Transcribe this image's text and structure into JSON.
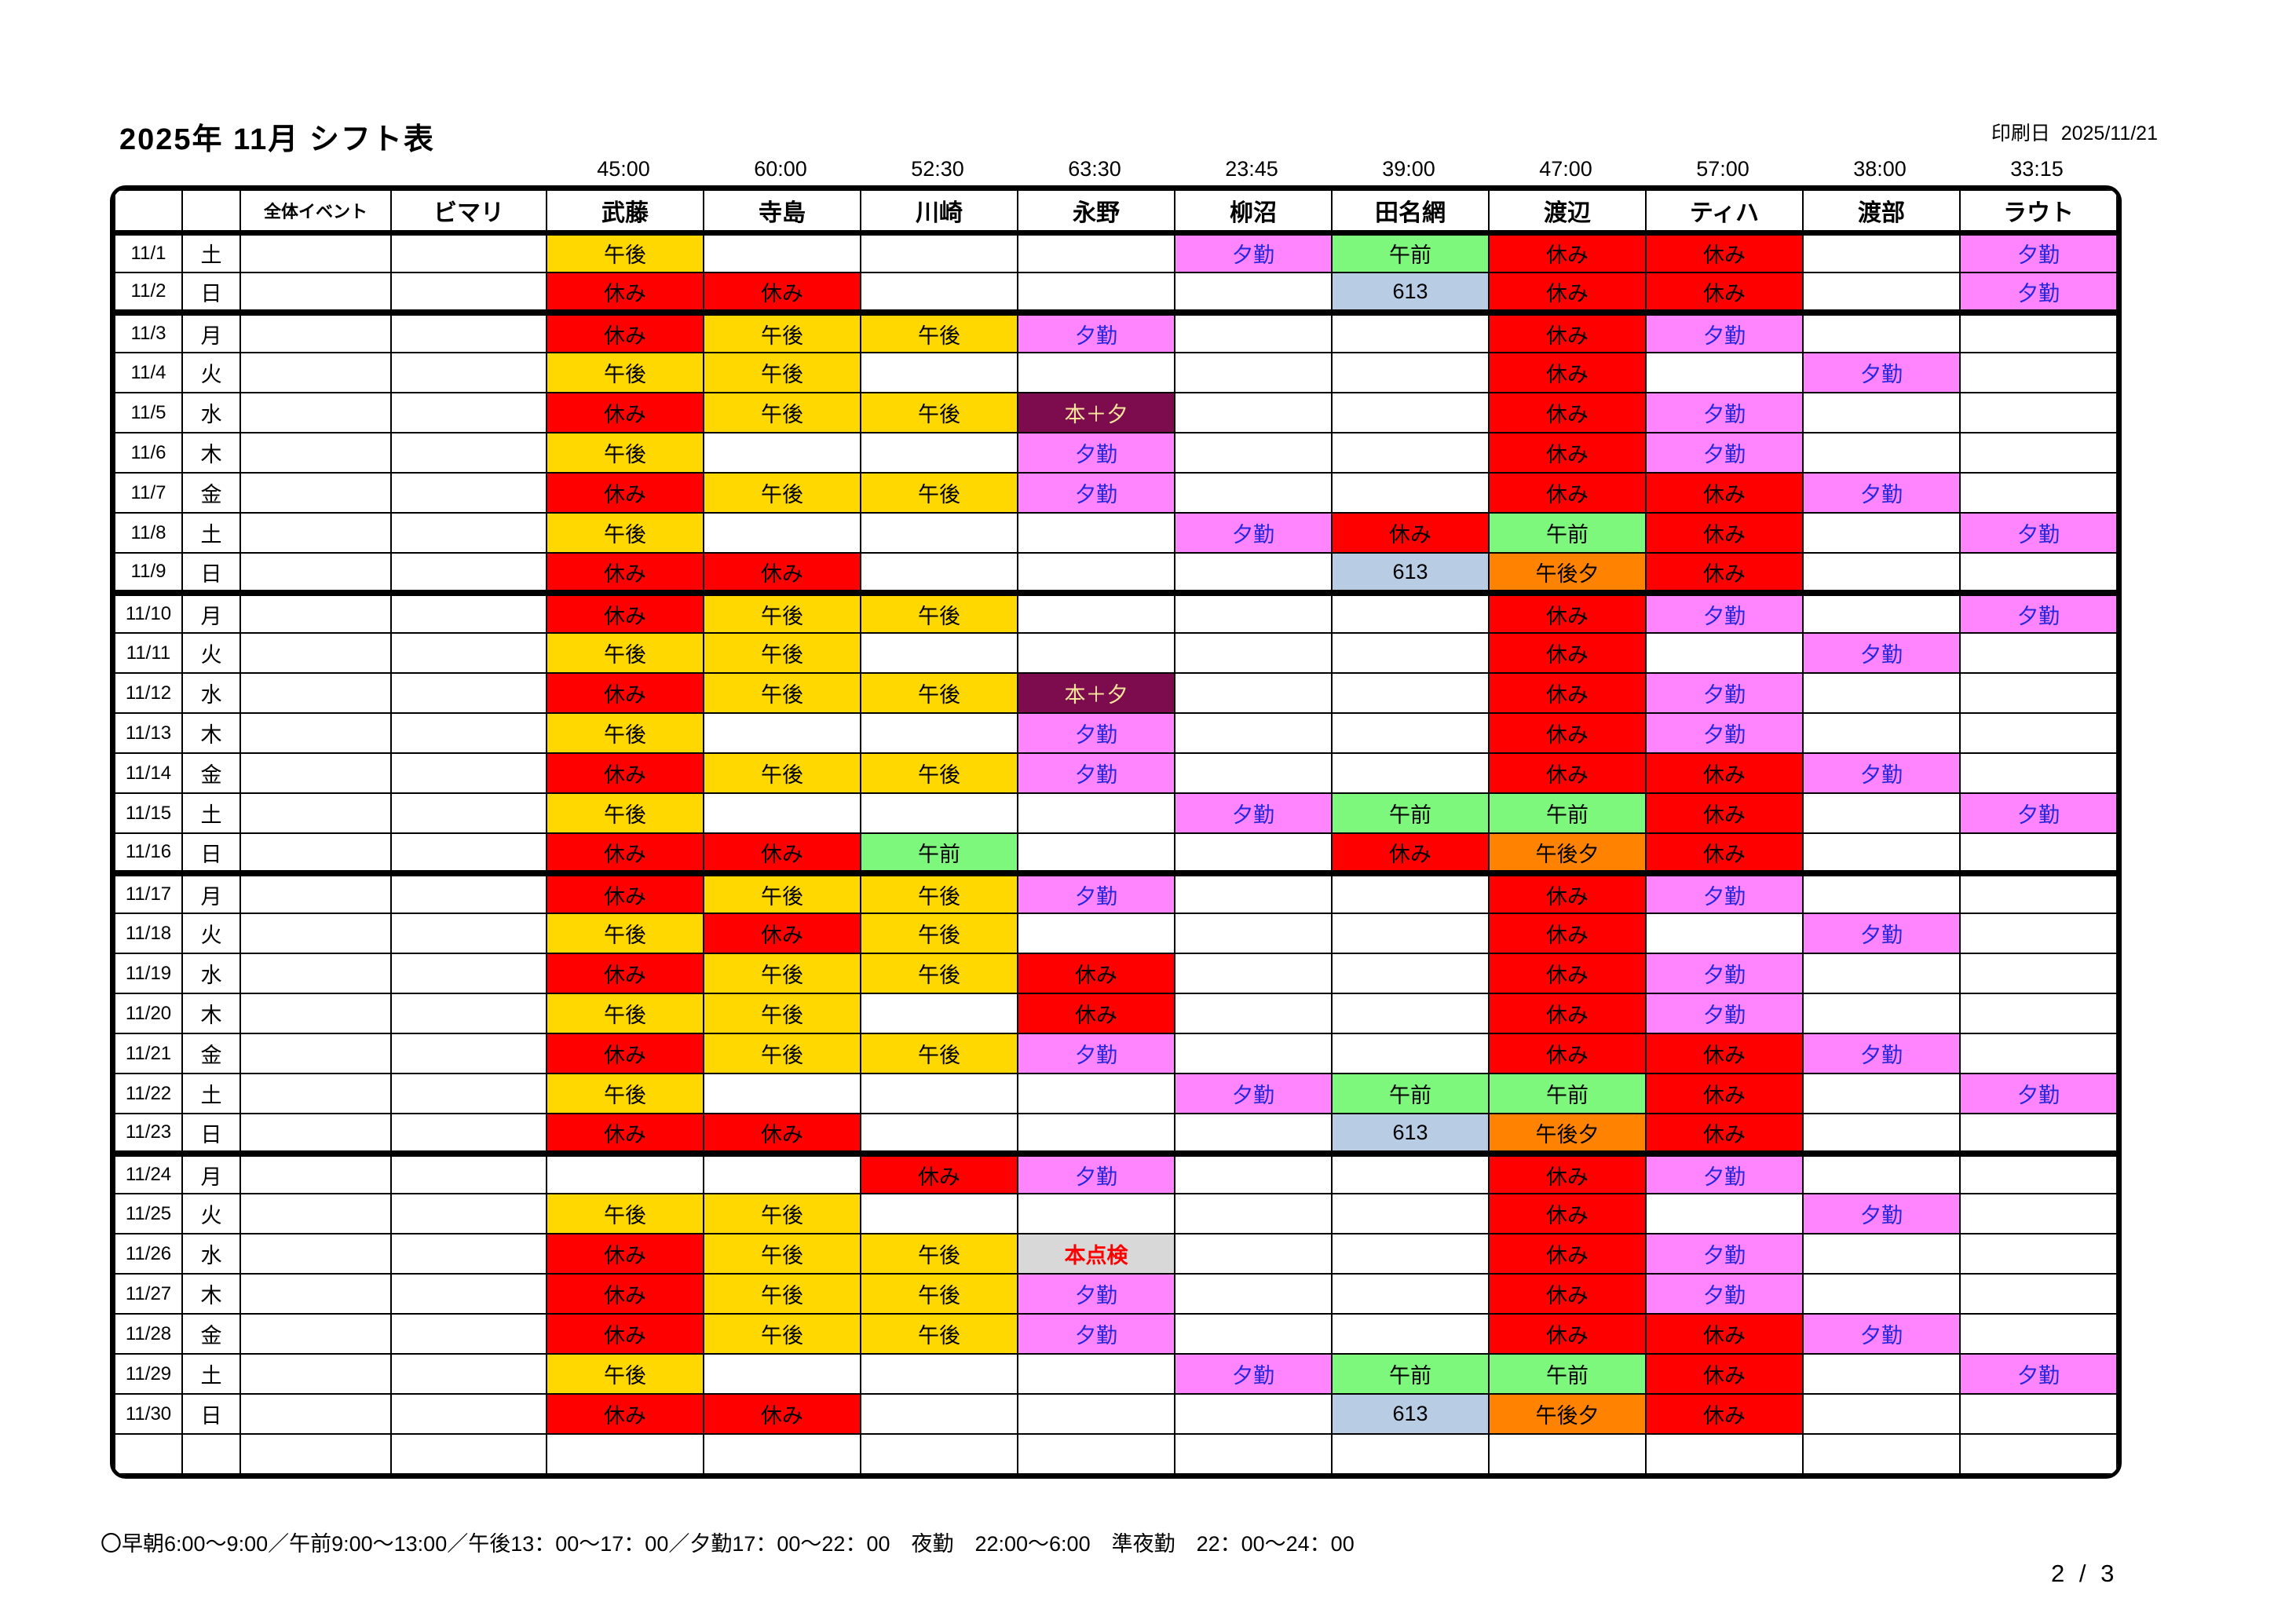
{
  "page": {
    "title": "2025年 11月 シフト表",
    "print_label": "印刷日  2025/11/21",
    "footer_legend": "〇早朝6:00～9:00／午前9:00～13:00／午後13：00～17：00／夕勤17：00～22：00　夜勤　22:00～6:00　準夜勤　22：00～24：00",
    "page_indicator": "2 / 3"
  },
  "table": {
    "columns": [
      {
        "name": "全体イベント",
        "hours": "",
        "small": true
      },
      {
        "name": "ビマリ",
        "hours": ""
      },
      {
        "name": "武藤",
        "hours": "45:00"
      },
      {
        "name": "寺島",
        "hours": "60:00"
      },
      {
        "name": "川崎",
        "hours": "52:30"
      },
      {
        "name": "永野",
        "hours": "63:30"
      },
      {
        "name": "柳沼",
        "hours": "23:45"
      },
      {
        "name": "田名網",
        "hours": "39:00"
      },
      {
        "name": "渡辺",
        "hours": "47:00"
      },
      {
        "name": "ティハ",
        "hours": "57:00"
      },
      {
        "name": "渡部",
        "hours": "38:00"
      },
      {
        "name": "ラウト",
        "hours": "33:15"
      }
    ],
    "shift_types": {
      "afternoon": {
        "label": "午後",
        "bg": "#FFD800",
        "fg": "#000000"
      },
      "off": {
        "label": "休み",
        "bg": "#FF0000",
        "fg": "#000000"
      },
      "evening": {
        "label": "夕勤",
        "bg": "#FF85FF",
        "fg": "#2626DD"
      },
      "morning": {
        "label": "午前",
        "bg": "#7DF87D",
        "fg": "#000000"
      },
      "c613": {
        "label": "613",
        "bg": "#B8CCE4",
        "fg": "#000000"
      },
      "pm_eve": {
        "label": "午後夕",
        "bg": "#FF8200",
        "fg": "#000000"
      },
      "hon_yu": {
        "label": "本＋夕",
        "bg": "#7C0C4E",
        "fg": "#FFE79C"
      },
      "inspection": {
        "label": "本点検",
        "bg": "#D8D8D8",
        "fg": "#FF0000"
      }
    },
    "rows": [
      {
        "date": "11/1",
        "day": "土",
        "sep": false,
        "cells": [
          "",
          "",
          "afternoon",
          "",
          "",
          "",
          "evening",
          "morning",
          "off",
          "off",
          "",
          "evening"
        ]
      },
      {
        "date": "11/2",
        "day": "日",
        "sep": true,
        "cells": [
          "",
          "",
          "off",
          "off",
          "",
          "",
          "",
          "c613",
          "off",
          "off",
          "",
          "evening"
        ]
      },
      {
        "date": "11/3",
        "day": "月",
        "sep": false,
        "cells": [
          "",
          "",
          "off",
          "afternoon",
          "afternoon",
          "evening",
          "",
          "",
          "off",
          "evening",
          "",
          ""
        ]
      },
      {
        "date": "11/4",
        "day": "火",
        "sep": false,
        "cells": [
          "",
          "",
          "afternoon",
          "afternoon",
          "",
          "",
          "",
          "",
          "off",
          "",
          "evening",
          ""
        ]
      },
      {
        "date": "11/5",
        "day": "水",
        "sep": false,
        "cells": [
          "",
          "",
          "off",
          "afternoon",
          "afternoon",
          "hon_yu",
          "",
          "",
          "off",
          "evening",
          "",
          ""
        ]
      },
      {
        "date": "11/6",
        "day": "木",
        "sep": false,
        "cells": [
          "",
          "",
          "afternoon",
          "",
          "",
          "evening",
          "",
          "",
          "off",
          "evening",
          "",
          ""
        ]
      },
      {
        "date": "11/7",
        "day": "金",
        "sep": false,
        "cells": [
          "",
          "",
          "off",
          "afternoon",
          "afternoon",
          "evening",
          "",
          "",
          "off",
          "off",
          "evening",
          ""
        ]
      },
      {
        "date": "11/8",
        "day": "土",
        "sep": false,
        "cells": [
          "",
          "",
          "afternoon",
          "",
          "",
          "",
          "evening",
          "off",
          "morning",
          "off",
          "",
          "evening"
        ]
      },
      {
        "date": "11/9",
        "day": "日",
        "sep": true,
        "cells": [
          "",
          "",
          "off",
          "off",
          "",
          "",
          "",
          "c613",
          "pm_eve",
          "off",
          "",
          ""
        ]
      },
      {
        "date": "11/10",
        "day": "月",
        "sep": false,
        "cells": [
          "",
          "",
          "off",
          "afternoon",
          "afternoon",
          "",
          "",
          "",
          "off",
          "evening",
          "",
          "evening"
        ]
      },
      {
        "date": "11/11",
        "day": "火",
        "sep": false,
        "cells": [
          "",
          "",
          "afternoon",
          "afternoon",
          "",
          "",
          "",
          "",
          "off",
          "",
          "evening",
          ""
        ]
      },
      {
        "date": "11/12",
        "day": "水",
        "sep": false,
        "cells": [
          "",
          "",
          "off",
          "afternoon",
          "afternoon",
          "hon_yu",
          "",
          "",
          "off",
          "evening",
          "",
          ""
        ]
      },
      {
        "date": "11/13",
        "day": "木",
        "sep": false,
        "cells": [
          "",
          "",
          "afternoon",
          "",
          "",
          "evening",
          "",
          "",
          "off",
          "evening",
          "",
          ""
        ]
      },
      {
        "date": "11/14",
        "day": "金",
        "sep": false,
        "cells": [
          "",
          "",
          "off",
          "afternoon",
          "afternoon",
          "evening",
          "",
          "",
          "off",
          "off",
          "evening",
          ""
        ]
      },
      {
        "date": "11/15",
        "day": "土",
        "sep": false,
        "cells": [
          "",
          "",
          "afternoon",
          "",
          "",
          "",
          "evening",
          "morning",
          "morning",
          "off",
          "",
          "evening"
        ]
      },
      {
        "date": "11/16",
        "day": "日",
        "sep": true,
        "cells": [
          "",
          "",
          "off",
          "off",
          "morning",
          "",
          "",
          "off",
          "pm_eve",
          "off",
          "",
          ""
        ]
      },
      {
        "date": "11/17",
        "day": "月",
        "sep": false,
        "cells": [
          "",
          "",
          "off",
          "afternoon",
          "afternoon",
          "evening",
          "",
          "",
          "off",
          "evening",
          "",
          ""
        ]
      },
      {
        "date": "11/18",
        "day": "火",
        "sep": false,
        "cells": [
          "",
          "",
          "afternoon",
          "off",
          "afternoon",
          "",
          "",
          "",
          "off",
          "",
          "evening",
          ""
        ]
      },
      {
        "date": "11/19",
        "day": "水",
        "sep": false,
        "cells": [
          "",
          "",
          "off",
          "afternoon",
          "afternoon",
          "off",
          "",
          "",
          "off",
          "evening",
          "",
          ""
        ]
      },
      {
        "date": "11/20",
        "day": "木",
        "sep": false,
        "cells": [
          "",
          "",
          "afternoon",
          "afternoon",
          "",
          "off",
          "",
          "",
          "off",
          "evening",
          "",
          ""
        ]
      },
      {
        "date": "11/21",
        "day": "金",
        "sep": false,
        "cells": [
          "",
          "",
          "off",
          "afternoon",
          "afternoon",
          "evening",
          "",
          "",
          "off",
          "off",
          "evening",
          ""
        ]
      },
      {
        "date": "11/22",
        "day": "土",
        "sep": false,
        "cells": [
          "",
          "",
          "afternoon",
          "",
          "",
          "",
          "evening",
          "morning",
          "morning",
          "off",
          "",
          "evening"
        ]
      },
      {
        "date": "11/23",
        "day": "日",
        "sep": true,
        "cells": [
          "",
          "",
          "off",
          "off",
          "",
          "",
          "",
          "c613",
          "pm_eve",
          "off",
          "",
          ""
        ]
      },
      {
        "date": "11/24",
        "day": "月",
        "sep": false,
        "cells": [
          "",
          "",
          "",
          "",
          "off",
          "evening",
          "",
          "",
          "off",
          "evening",
          "",
          ""
        ]
      },
      {
        "date": "11/25",
        "day": "火",
        "sep": false,
        "cells": [
          "",
          "",
          "afternoon",
          "afternoon",
          "",
          "",
          "",
          "",
          "off",
          "",
          "evening",
          ""
        ]
      },
      {
        "date": "11/26",
        "day": "水",
        "sep": false,
        "cells": [
          "",
          "",
          "off",
          "afternoon",
          "afternoon",
          "inspection",
          "",
          "",
          "off",
          "evening",
          "",
          ""
        ]
      },
      {
        "date": "11/27",
        "day": "木",
        "sep": false,
        "cells": [
          "",
          "",
          "off",
          "afternoon",
          "afternoon",
          "evening",
          "",
          "",
          "off",
          "evening",
          "",
          ""
        ]
      },
      {
        "date": "11/28",
        "day": "金",
        "sep": false,
        "cells": [
          "",
          "",
          "off",
          "afternoon",
          "afternoon",
          "evening",
          "",
          "",
          "off",
          "off",
          "evening",
          ""
        ]
      },
      {
        "date": "11/29",
        "day": "土",
        "sep": false,
        "cells": [
          "",
          "",
          "afternoon",
          "",
          "",
          "",
          "evening",
          "morning",
          "morning",
          "off",
          "",
          "evening"
        ]
      },
      {
        "date": "11/30",
        "day": "日",
        "sep": false,
        "cells": [
          "",
          "",
          "off",
          "off",
          "",
          "",
          "",
          "c613",
          "pm_eve",
          "off",
          "",
          ""
        ]
      },
      {
        "date": "",
        "day": "",
        "sep": false,
        "cells": [
          "",
          "",
          "",
          "",
          "",
          "",
          "",
          "",
          "",
          "",
          "",
          ""
        ]
      }
    ]
  }
}
